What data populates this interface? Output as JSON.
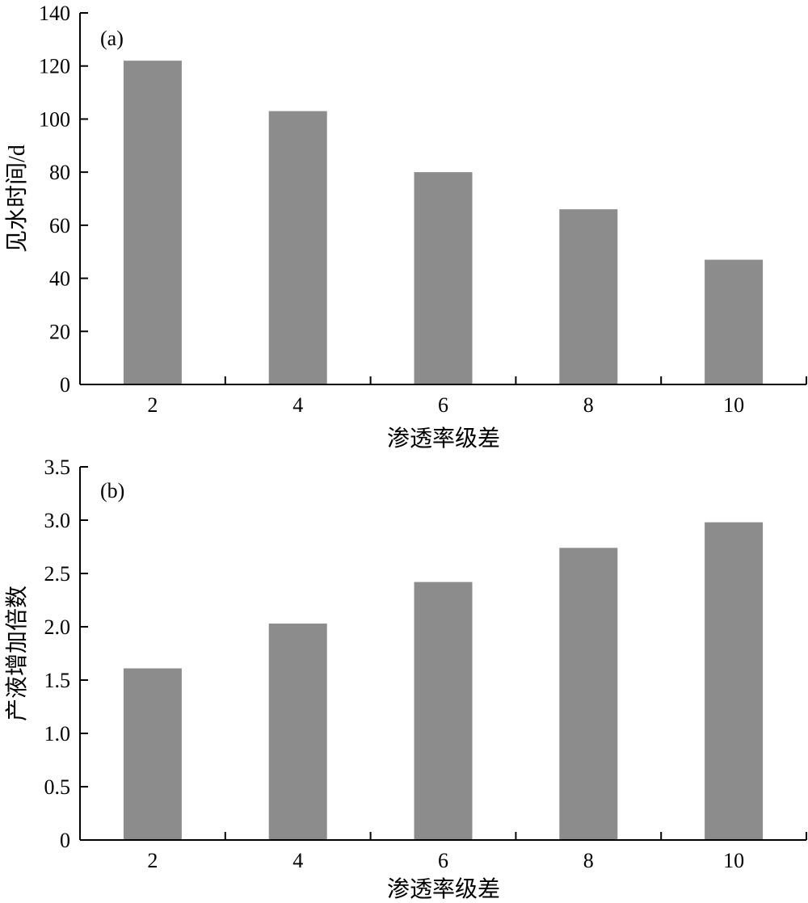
{
  "colors": {
    "bar": "#8c8c8c",
    "axis": "#000000",
    "background": "#ffffff"
  },
  "chart_data": [
    {
      "type": "bar",
      "panel_label": "(a)",
      "categories": [
        "2",
        "4",
        "6",
        "8",
        "10"
      ],
      "values": [
        122,
        103,
        80,
        66,
        47
      ],
      "xlabel": "渗透率级差",
      "ylabel": "见水时间/d",
      "ylim": [
        0,
        140
      ],
      "yticks": [
        "0",
        "20",
        "40",
        "60",
        "80",
        "100",
        "120",
        "140"
      ],
      "grid": false,
      "legend": "none"
    },
    {
      "type": "bar",
      "panel_label": "(b)",
      "categories": [
        "2",
        "4",
        "6",
        "8",
        "10"
      ],
      "values": [
        1.61,
        2.03,
        2.42,
        2.74,
        2.98
      ],
      "xlabel": "渗透率级差",
      "ylabel": "产液增加倍数",
      "ylim": [
        0,
        3.5
      ],
      "yticks": [
        "0",
        "0.5",
        "1.0",
        "1.5",
        "2.0",
        "2.5",
        "3.0",
        "3.5"
      ],
      "grid": false,
      "legend": "none"
    }
  ]
}
